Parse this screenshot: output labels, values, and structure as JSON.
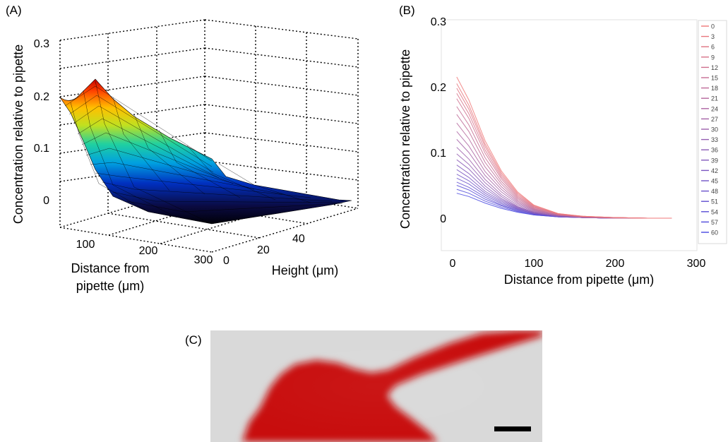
{
  "panels": {
    "a": {
      "label": "(A)"
    },
    "b": {
      "label": "(B)"
    },
    "c": {
      "label": "(C)"
    }
  },
  "chart_data": [
    {
      "panel": "A",
      "type": "surface",
      "ylabel": "Concentration relative to pipette",
      "xlabel": "Distance from pipette (μm)",
      "xlabel_lines": [
        "Distance from",
        "pipette (μm)"
      ],
      "zaxis_label": "Height (μm)",
      "x_ticks": [
        "100",
        "200",
        "300"
      ],
      "height_ticks": [
        "0",
        "20",
        "40"
      ],
      "y_ticks": [
        "0",
        "0.1",
        "0.2",
        "0.3"
      ],
      "ylim": [
        -0.04,
        0.3
      ],
      "xlim": [
        30,
        310
      ],
      "height_lim": [
        0,
        55
      ],
      "grid": true,
      "colormap": "jet",
      "distance": [
        30,
        70,
        110,
        150,
        190,
        230,
        270
      ],
      "height": [
        0,
        10,
        20,
        30,
        40,
        50
      ],
      "concentration_at_height_0": [
        0.19,
        0.13,
        0.06,
        0.03,
        0.015,
        0.008,
        0.003
      ],
      "peak": {
        "distance": 60,
        "height": 15,
        "concentration": 0.22
      }
    },
    {
      "panel": "B",
      "type": "line",
      "xlabel": "Distance from pipette (μm)",
      "ylabel": "Concentration relative to pipette",
      "xlim": [
        -10,
        300
      ],
      "ylim": [
        -0.05,
        0.3
      ],
      "x_ticks": [
        "0",
        "100",
        "200",
        "300"
      ],
      "y_ticks": [
        "0",
        "0.1",
        "0.2",
        "0.3"
      ],
      "grid": false,
      "legend_position": "right",
      "x": [
        5,
        20,
        40,
        60,
        80,
        100,
        130,
        160,
        200,
        240,
        270
      ],
      "series": [
        {
          "name": "0",
          "values": [
            0.215,
            0.18,
            0.118,
            0.072,
            0.04,
            0.02,
            0.007,
            0.003,
            0.001,
            0.0,
            0.0
          ]
        },
        {
          "name": "3",
          "values": [
            0.205,
            0.172,
            0.113,
            0.069,
            0.038,
            0.019,
            0.007,
            0.003,
            0.001,
            0.0,
            0.0
          ]
        },
        {
          "name": "6",
          "values": [
            0.198,
            0.166,
            0.109,
            0.066,
            0.036,
            0.018,
            0.006,
            0.003,
            0.001,
            0.0,
            0.0
          ]
        },
        {
          "name": "9",
          "values": [
            0.19,
            0.159,
            0.104,
            0.063,
            0.034,
            0.017,
            0.006,
            0.002,
            0.001,
            0.0,
            0.0
          ]
        },
        {
          "name": "12",
          "values": [
            0.182,
            0.152,
            0.099,
            0.06,
            0.032,
            0.016,
            0.006,
            0.002,
            0.001,
            0.0,
            0.0
          ]
        },
        {
          "name": "15",
          "values": [
            0.17,
            0.142,
            0.092,
            0.056,
            0.03,
            0.015,
            0.005,
            0.002,
            0.001,
            0.0,
            0.0
          ]
        },
        {
          "name": "18",
          "values": [
            0.158,
            0.132,
            0.085,
            0.052,
            0.028,
            0.014,
            0.005,
            0.002,
            0.001,
            0.0,
            0.0
          ]
        },
        {
          "name": "21",
          "values": [
            0.145,
            0.121,
            0.078,
            0.048,
            0.026,
            0.013,
            0.005,
            0.002,
            0.0,
            0.0,
            0.0
          ]
        },
        {
          "name": "24",
          "values": [
            0.132,
            0.11,
            0.071,
            0.044,
            0.024,
            0.012,
            0.004,
            0.002,
            0.0,
            0.0,
            0.0
          ]
        },
        {
          "name": "27",
          "values": [
            0.12,
            0.1,
            0.065,
            0.04,
            0.022,
            0.011,
            0.004,
            0.002,
            0.0,
            0.0,
            0.0
          ]
        },
        {
          "name": "30",
          "values": [
            0.108,
            0.09,
            0.059,
            0.036,
            0.02,
            0.01,
            0.004,
            0.001,
            0.0,
            0.0,
            0.0
          ]
        },
        {
          "name": "33",
          "values": [
            0.098,
            0.082,
            0.054,
            0.033,
            0.018,
            0.009,
            0.003,
            0.001,
            0.0,
            0.0,
            0.0
          ]
        },
        {
          "name": "36",
          "values": [
            0.089,
            0.075,
            0.049,
            0.03,
            0.017,
            0.009,
            0.003,
            0.001,
            0.0,
            0.0,
            0.0
          ]
        },
        {
          "name": "39",
          "values": [
            0.081,
            0.068,
            0.045,
            0.028,
            0.016,
            0.008,
            0.003,
            0.001,
            0.0,
            0.0,
            0.0
          ]
        },
        {
          "name": "42",
          "values": [
            0.074,
            0.062,
            0.041,
            0.026,
            0.015,
            0.008,
            0.003,
            0.001,
            0.0,
            0.0,
            0.0
          ]
        },
        {
          "name": "45",
          "values": [
            0.067,
            0.057,
            0.038,
            0.024,
            0.014,
            0.007,
            0.003,
            0.001,
            0.0,
            0.0,
            0.0
          ]
        },
        {
          "name": "48",
          "values": [
            0.061,
            0.052,
            0.035,
            0.022,
            0.013,
            0.007,
            0.003,
            0.001,
            0.0,
            0.0,
            0.0
          ]
        },
        {
          "name": "51",
          "values": [
            0.055,
            0.047,
            0.032,
            0.02,
            0.012,
            0.006,
            0.002,
            0.001,
            0.0,
            0.0,
            0.0
          ]
        },
        {
          "name": "54",
          "values": [
            0.05,
            0.043,
            0.029,
            0.019,
            0.011,
            0.006,
            0.002,
            0.001,
            0.0,
            0.0,
            0.0
          ]
        },
        {
          "name": "57",
          "values": [
            0.044,
            0.038,
            0.026,
            0.017,
            0.01,
            0.005,
            0.002,
            0.001,
            0.0,
            0.0,
            0.0
          ]
        },
        {
          "name": "60",
          "values": [
            0.038,
            0.033,
            0.023,
            0.015,
            0.009,
            0.005,
            0.002,
            0.001,
            0.0,
            0.0,
            0.0
          ]
        }
      ],
      "series_color_start": "#f07878",
      "series_color_end": "#4848e0"
    }
  ],
  "image_c": {
    "background": "#d9d9d9",
    "stain_color": "#c80f0f",
    "scale_bar_color": "#000000"
  }
}
